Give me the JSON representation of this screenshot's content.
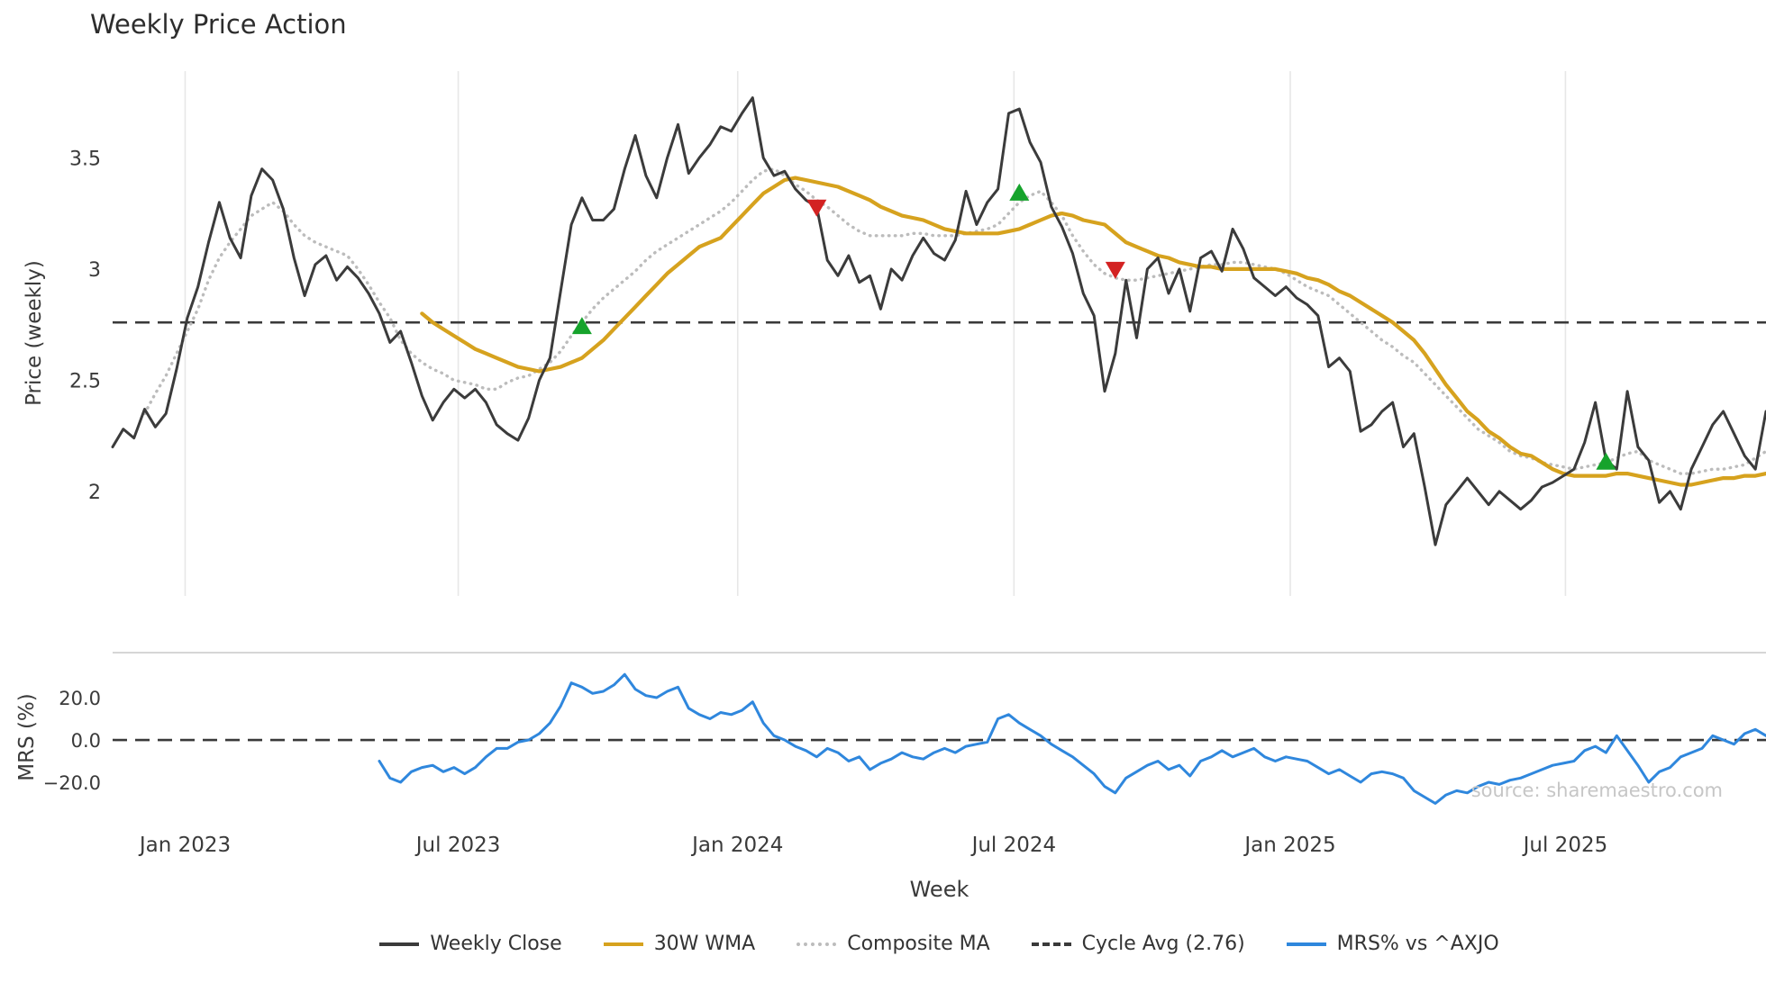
{
  "chart_data": {
    "type": "line",
    "title": "Weekly Price Action",
    "xlabel": "Week",
    "watermark": "source: sharemaestro.com",
    "n_points": 156,
    "x_tick_labels": [
      "Jan 2023",
      "Jul 2023",
      "Jan 2024",
      "Jul 2024",
      "Jan 2025",
      "Jul 2025"
    ],
    "x_tick_positions": [
      6.8,
      32.4,
      58.6,
      84.5,
      110.4,
      136.2
    ],
    "grid": "vertical-only",
    "panels": {
      "price": {
        "ylabel": "Price (weekly)",
        "ylim": [
          1.53,
          3.89
        ],
        "ytick_values": [
          2,
          2.5,
          3,
          3.5
        ],
        "ytick_labels": [
          "2",
          "2.5",
          "3",
          "3.5"
        ],
        "cycle_avg": 2.76
      },
      "mrs": {
        "ylabel": "MRS (%)",
        "ylim": [
          -38.3,
          41.3
        ],
        "ytick_values": [
          20,
          0,
          -20
        ],
        "ytick_labels": [
          "20.0",
          "0.0",
          "−20.0"
        ],
        "zero_line": 0
      }
    },
    "colors": {
      "weekly_close": "#3b3b3b",
      "wma": "#d6a21e",
      "composite": "#bcbcbc",
      "cycle_avg": "#3a3a3a",
      "mrs": "#2f87dd",
      "buy": "#16a32c",
      "sell": "#d32222",
      "gridline": "#e7e7e7",
      "spine": "#c9c9c9",
      "tick_text": "#3a3a3a"
    },
    "series": [
      {
        "name": "Weekly Close",
        "panel": "price",
        "style": "solid",
        "color": "#3b3b3b",
        "start_index": 0,
        "values": [
          2.2,
          2.28,
          2.24,
          2.37,
          2.29,
          2.35,
          2.55,
          2.78,
          2.92,
          3.12,
          3.3,
          3.14,
          3.05,
          3.33,
          3.45,
          3.4,
          3.27,
          3.05,
          2.88,
          3.02,
          3.06,
          2.95,
          3.01,
          2.96,
          2.89,
          2.8,
          2.67,
          2.72,
          2.58,
          2.43,
          2.32,
          2.4,
          2.46,
          2.42,
          2.46,
          2.4,
          2.3,
          2.26,
          2.23,
          2.33,
          2.5,
          2.6,
          2.9,
          3.2,
          3.32,
          3.22,
          3.22,
          3.27,
          3.45,
          3.6,
          3.42,
          3.32,
          3.5,
          3.65,
          3.43,
          3.5,
          3.56,
          3.64,
          3.62,
          3.7,
          3.77,
          3.5,
          3.42,
          3.44,
          3.36,
          3.31,
          3.28,
          3.04,
          2.97,
          3.06,
          2.94,
          2.97,
          2.82,
          3.0,
          2.95,
          3.06,
          3.14,
          3.07,
          3.04,
          3.13,
          3.35,
          3.2,
          3.3,
          3.36,
          3.7,
          3.72,
          3.57,
          3.48,
          3.28,
          3.19,
          3.07,
          2.89,
          2.79,
          2.45,
          2.62,
          2.95,
          2.69,
          3.0,
          3.05,
          2.89,
          3.0,
          2.81,
          3.05,
          3.08,
          2.99,
          3.18,
          3.09,
          2.96,
          2.92,
          2.88,
          2.92,
          2.87,
          2.84,
          2.79,
          2.56,
          2.6,
          2.54,
          2.27,
          2.3,
          2.36,
          2.4,
          2.2,
          2.26,
          2.02,
          1.76,
          1.94,
          2.0,
          2.06,
          2.0,
          1.94,
          2.0,
          1.96,
          1.92,
          1.96,
          2.02,
          2.04,
          2.07,
          2.1,
          2.22,
          2.4,
          2.14,
          2.1,
          2.45,
          2.2,
          2.14,
          1.95,
          2.0,
          1.92,
          2.1,
          2.2,
          2.3,
          2.36,
          2.26,
          2.16,
          2.1,
          2.36
        ]
      },
      {
        "name": "30W WMA",
        "panel": "price",
        "style": "solid",
        "color": "#d6a21e",
        "start_index": 29,
        "values": [
          2.8,
          2.76,
          2.73,
          2.7,
          2.67,
          2.64,
          2.62,
          2.6,
          2.58,
          2.56,
          2.55,
          2.54,
          2.55,
          2.56,
          2.58,
          2.6,
          2.64,
          2.68,
          2.73,
          2.78,
          2.83,
          2.88,
          2.93,
          2.98,
          3.02,
          3.06,
          3.1,
          3.12,
          3.14,
          3.19,
          3.24,
          3.29,
          3.34,
          3.37,
          3.4,
          3.41,
          3.4,
          3.39,
          3.38,
          3.37,
          3.35,
          3.33,
          3.31,
          3.28,
          3.26,
          3.24,
          3.23,
          3.22,
          3.2,
          3.18,
          3.17,
          3.16,
          3.16,
          3.16,
          3.16,
          3.17,
          3.18,
          3.2,
          3.22,
          3.24,
          3.25,
          3.24,
          3.22,
          3.21,
          3.2,
          3.16,
          3.12,
          3.1,
          3.08,
          3.06,
          3.05,
          3.03,
          3.02,
          3.01,
          3.01,
          3.0,
          3.0,
          3.0,
          3.0,
          3.0,
          3.0,
          2.99,
          2.98,
          2.96,
          2.95,
          2.93,
          2.9,
          2.88,
          2.85,
          2.82,
          2.79,
          2.76,
          2.72,
          2.68,
          2.62,
          2.55,
          2.48,
          2.42,
          2.36,
          2.32,
          2.27,
          2.24,
          2.2,
          2.17,
          2.16,
          2.13,
          2.1,
          2.08,
          2.07,
          2.07,
          2.07,
          2.07,
          2.08,
          2.08,
          2.07,
          2.06,
          2.05,
          2.04,
          2.03,
          2.03,
          2.04,
          2.05,
          2.06,
          2.06,
          2.07,
          2.07,
          2.08
        ]
      },
      {
        "name": "Composite MA",
        "panel": "price",
        "style": "dotted",
        "color": "#bcbcbc",
        "start_index": 3,
        "values": [
          2.35,
          2.44,
          2.52,
          2.62,
          2.72,
          2.82,
          2.95,
          3.05,
          3.12,
          3.18,
          3.24,
          3.27,
          3.3,
          3.26,
          3.2,
          3.15,
          3.12,
          3.1,
          3.08,
          3.06,
          3.0,
          2.93,
          2.85,
          2.78,
          2.68,
          2.62,
          2.58,
          2.55,
          2.53,
          2.5,
          2.49,
          2.48,
          2.46,
          2.46,
          2.49,
          2.51,
          2.52,
          2.55,
          2.58,
          2.63,
          2.7,
          2.76,
          2.82,
          2.87,
          2.91,
          2.95,
          2.99,
          3.04,
          3.08,
          3.11,
          3.14,
          3.17,
          3.2,
          3.23,
          3.26,
          3.3,
          3.35,
          3.4,
          3.44,
          3.45,
          3.42,
          3.38,
          3.35,
          3.31,
          3.28,
          3.24,
          3.2,
          3.17,
          3.15,
          3.15,
          3.15,
          3.15,
          3.16,
          3.16,
          3.15,
          3.15,
          3.15,
          3.16,
          3.17,
          3.18,
          3.2,
          3.25,
          3.3,
          3.33,
          3.35,
          3.3,
          3.24,
          3.15,
          3.08,
          3.02,
          2.98,
          2.96,
          2.95,
          2.95,
          2.96,
          2.97,
          2.98,
          2.99,
          3.0,
          3.01,
          3.02,
          3.02,
          3.03,
          3.03,
          3.02,
          3.01,
          3.0,
          2.98,
          2.95,
          2.92,
          2.9,
          2.88,
          2.84,
          2.8,
          2.76,
          2.72,
          2.68,
          2.65,
          2.61,
          2.58,
          2.53,
          2.48,
          2.43,
          2.38,
          2.33,
          2.28,
          2.25,
          2.22,
          2.18,
          2.16,
          2.15,
          2.13,
          2.12,
          2.11,
          2.1,
          2.11,
          2.12,
          2.13,
          2.15,
          2.17,
          2.18,
          2.14,
          2.12,
          2.1,
          2.08,
          2.08,
          2.09,
          2.1,
          2.1,
          2.11,
          2.12,
          2.15,
          2.18
        ]
      },
      {
        "name": "MRS% vs ^AXJO",
        "panel": "mrs",
        "style": "solid",
        "color": "#2f87dd",
        "start_index": 25,
        "values": [
          -10,
          -18,
          -20,
          -15,
          -13,
          -12,
          -15,
          -13,
          -16,
          -13,
          -8,
          -4,
          -4,
          -1,
          0,
          3,
          8,
          16,
          27,
          25,
          22,
          23,
          26,
          31,
          24,
          21,
          20,
          23,
          25,
          15,
          12,
          10,
          13,
          12,
          14,
          18,
          8,
          2,
          0,
          -3,
          -5,
          -8,
          -4,
          -6,
          -10,
          -8,
          -14,
          -11,
          -9,
          -6,
          -8,
          -9,
          -6,
          -4,
          -6,
          -3,
          -2,
          -1,
          10,
          12,
          8,
          5,
          2,
          -2,
          -5,
          -8,
          -12,
          -16,
          -22,
          -25,
          -18,
          -15,
          -12,
          -10,
          -14,
          -12,
          -17,
          -10,
          -8,
          -5,
          -8,
          -6,
          -4,
          -8,
          -10,
          -8,
          -9,
          -10,
          -13,
          -16,
          -14,
          -17,
          -20,
          -16,
          -15,
          -16,
          -18,
          -24,
          -27,
          -30,
          -26,
          -24,
          -25,
          -22,
          -20,
          -21,
          -19,
          -18,
          -16,
          -14,
          -12,
          -11,
          -10,
          -5,
          -3,
          -6,
          2,
          -5,
          -12,
          -20,
          -15,
          -13,
          -8,
          -6,
          -4,
          2,
          0,
          -2,
          3,
          5,
          2
        ]
      }
    ],
    "reference_lines": [
      {
        "name": "Cycle Avg (2.76)",
        "panel": "price",
        "value": 2.76,
        "style": "dashed",
        "color": "#3a3a3a"
      },
      {
        "name": "MRS zero line",
        "panel": "mrs",
        "value": 0,
        "style": "dashed",
        "color": "#3a3a3a"
      }
    ],
    "signals": {
      "buy_color": "#16a32c",
      "sell_color": "#d32222",
      "markers": [
        {
          "type": "buy",
          "index": 44,
          "price": 2.74
        },
        {
          "type": "sell",
          "index": 66,
          "price": 3.28
        },
        {
          "type": "buy",
          "index": 85,
          "price": 3.34
        },
        {
          "type": "sell",
          "index": 94,
          "price": 3.0
        },
        {
          "type": "buy",
          "index": 140,
          "price": 2.13
        }
      ]
    },
    "legend": {
      "position": "bottom-center",
      "items": [
        {
          "label": "Weekly Close",
          "swatch": "solid",
          "color": "#3b3b3b"
        },
        {
          "label": "30W WMA",
          "swatch": "solid",
          "color": "#d6a21e"
        },
        {
          "label": "Composite MA",
          "swatch": "dotted",
          "color": "#bcbcbc"
        },
        {
          "label": "Cycle Avg (2.76)",
          "swatch": "dashed",
          "color": "#3a3a3a"
        },
        {
          "label": "MRS% vs ^AXJO",
          "swatch": "solid",
          "color": "#2f87dd"
        }
      ]
    }
  }
}
